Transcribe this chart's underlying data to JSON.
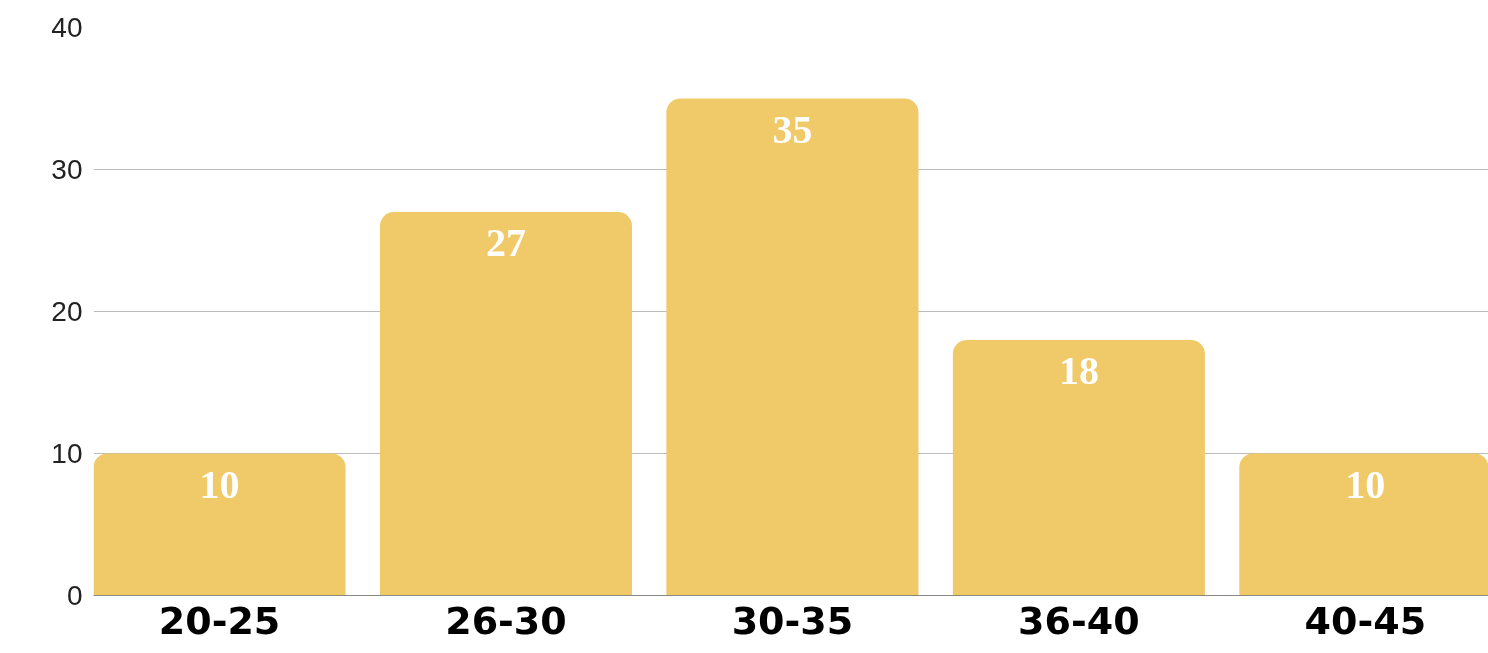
{
  "chart_data": {
    "type": "bar",
    "categories": [
      "20-25",
      "26-30",
      "30-35",
      "36-40",
      "40-45"
    ],
    "values": [
      10,
      27,
      35,
      18,
      10
    ],
    "color": "#f0ca68",
    "ylim": [
      0,
      40
    ],
    "yticks": [
      0,
      10,
      20,
      30,
      40
    ],
    "grid": "y",
    "data_labels": true
  }
}
